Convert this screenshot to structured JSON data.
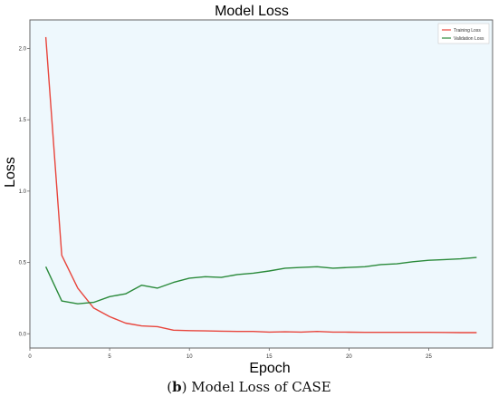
{
  "chart_data": {
    "type": "line",
    "title": "Model Loss",
    "xlabel": "Epoch",
    "ylabel": "Loss",
    "xlim": [
      0,
      29
    ],
    "ylim": [
      -0.1,
      2.2
    ],
    "xticks": [
      0,
      5,
      10,
      15,
      20,
      25
    ],
    "yticks": [
      0.0,
      0.5,
      1.0,
      1.5,
      2.0
    ],
    "x": [
      1,
      2,
      3,
      4,
      5,
      6,
      7,
      8,
      9,
      10,
      11,
      12,
      13,
      14,
      15,
      16,
      17,
      18,
      19,
      20,
      21,
      22,
      23,
      24,
      25,
      26,
      27,
      28
    ],
    "series": [
      {
        "name": "Training Loss",
        "color": "#e8453c",
        "values": [
          2.08,
          0.55,
          0.32,
          0.18,
          0.12,
          0.075,
          0.055,
          0.05,
          0.025,
          0.022,
          0.02,
          0.018,
          0.016,
          0.016,
          0.012,
          0.014,
          0.012,
          0.016,
          0.012,
          0.011,
          0.01,
          0.01,
          0.01,
          0.01,
          0.01,
          0.009,
          0.008,
          0.008
        ]
      },
      {
        "name": "Validation Loss",
        "color": "#2a8a3a",
        "values": [
          0.47,
          0.23,
          0.21,
          0.22,
          0.26,
          0.28,
          0.34,
          0.32,
          0.36,
          0.39,
          0.4,
          0.395,
          0.415,
          0.425,
          0.44,
          0.46,
          0.465,
          0.47,
          0.46,
          0.465,
          0.47,
          0.485,
          0.49,
          0.505,
          0.515,
          0.52,
          0.525,
          0.535
        ]
      }
    ],
    "legend_position": "top-right",
    "grid": false,
    "background_color": "#eef8fd"
  },
  "caption": {
    "label": "b",
    "text": " Model Loss of CASE"
  }
}
